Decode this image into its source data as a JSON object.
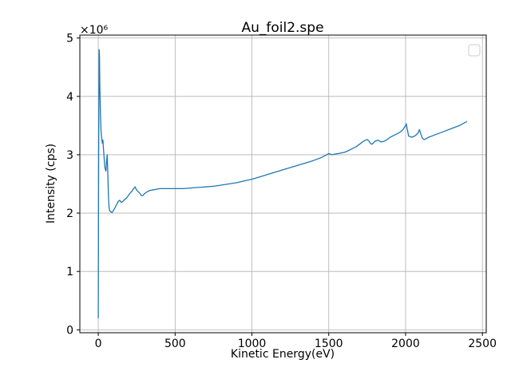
{
  "chart_data": {
    "type": "line",
    "title": "Au_foil2.spe",
    "xlabel": "Kinetic Energy(eV)",
    "ylabel": "Intensity (cps)",
    "y_offset_label": "×10⁶",
    "y_multiplier": 1000000,
    "xlim": [
      -120,
      2525
    ],
    "ylim": [
      -0.05,
      5.05
    ],
    "xticks": [
      0,
      500,
      1000,
      1500,
      2000,
      2500
    ],
    "xtick_labels": [
      "0",
      "500",
      "1000",
      "1500",
      "2000",
      "2500"
    ],
    "yticks": [
      0,
      1,
      2,
      3,
      4,
      5
    ],
    "ytick_labels": [
      "0",
      "1",
      "2",
      "3",
      "4",
      "5"
    ],
    "grid": true,
    "legend": "top-right (empty)",
    "series": [
      {
        "color": "#1f77b4",
        "x": [
          0,
          2,
          4,
          6,
          8,
          10,
          14,
          18,
          22,
          26,
          30,
          34,
          38,
          42,
          46,
          50,
          54,
          58,
          62,
          66,
          70,
          74,
          78,
          82,
          90,
          100,
          110,
          120,
          130,
          140,
          150,
          160,
          170,
          180,
          190,
          200,
          210,
          220,
          230,
          240,
          248,
          255,
          262,
          270,
          280,
          290,
          300,
          320,
          340,
          360,
          380,
          400,
          450,
          500,
          550,
          600,
          650,
          700,
          750,
          800,
          850,
          900,
          950,
          1000,
          1050,
          1100,
          1150,
          1200,
          1250,
          1300,
          1350,
          1400,
          1450,
          1480,
          1500,
          1510,
          1520,
          1540,
          1560,
          1580,
          1600,
          1620,
          1650,
          1680,
          1700,
          1720,
          1740,
          1750,
          1760,
          1770,
          1780,
          1790,
          1800,
          1820,
          1840,
          1860,
          1880,
          1900,
          1930,
          1960,
          1980,
          1990,
          2000,
          2005,
          2010,
          2020,
          2040,
          2060,
          2080,
          2090,
          2100,
          2110,
          2120,
          2130,
          2150,
          2200,
          2250,
          2300,
          2350,
          2400
        ],
        "values": [
          0.2,
          2.8,
          4.0,
          4.8,
          4.7,
          4.2,
          3.7,
          3.4,
          3.3,
          3.2,
          3.25,
          3.1,
          2.95,
          2.8,
          2.75,
          2.72,
          2.9,
          3.0,
          2.7,
          2.3,
          2.1,
          2.04,
          2.03,
          2.02,
          2.01,
          2.05,
          2.1,
          2.15,
          2.2,
          2.22,
          2.18,
          2.2,
          2.23,
          2.25,
          2.28,
          2.32,
          2.35,
          2.38,
          2.42,
          2.45,
          2.4,
          2.38,
          2.36,
          2.34,
          2.3,
          2.3,
          2.33,
          2.37,
          2.39,
          2.4,
          2.41,
          2.42,
          2.42,
          2.42,
          2.42,
          2.43,
          2.44,
          2.45,
          2.46,
          2.48,
          2.5,
          2.52,
          2.55,
          2.58,
          2.62,
          2.66,
          2.7,
          2.74,
          2.78,
          2.82,
          2.86,
          2.9,
          2.95,
          2.99,
          3.02,
          3.01,
          3.0,
          3.01,
          3.02,
          3.03,
          3.04,
          3.06,
          3.1,
          3.14,
          3.18,
          3.22,
          3.25,
          3.26,
          3.24,
          3.2,
          3.18,
          3.2,
          3.23,
          3.25,
          3.22,
          3.23,
          3.26,
          3.3,
          3.34,
          3.38,
          3.42,
          3.46,
          3.5,
          3.53,
          3.45,
          3.32,
          3.3,
          3.32,
          3.37,
          3.43,
          3.35,
          3.28,
          3.26,
          3.27,
          3.3,
          3.35,
          3.4,
          3.45,
          3.5,
          3.57
        ]
      }
    ]
  }
}
